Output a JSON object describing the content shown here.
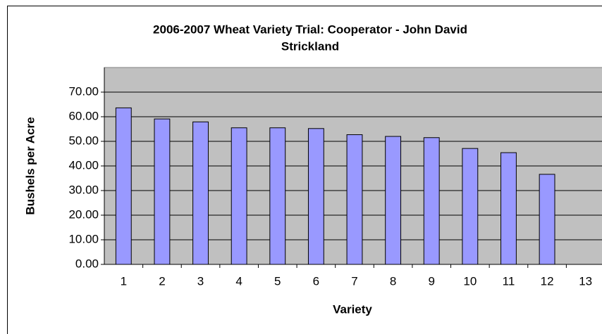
{
  "chart_data": {
    "type": "bar",
    "title": [
      "2006-2007 Wheat Variety Trial: Cooperator - John David",
      "Strickland"
    ],
    "x_label": "Variety",
    "y_label": "Bushels per Acre",
    "categories": [
      "1",
      "2",
      "3",
      "4",
      "5",
      "6",
      "7",
      "8",
      "9",
      "10",
      "11",
      "12",
      "13"
    ],
    "values": [
      63.6,
      59.1,
      57.9,
      55.5,
      55.5,
      55.2,
      52.7,
      52.0,
      51.5,
      47.1,
      45.4,
      36.6,
      null
    ],
    "color": "#9999ff",
    "plot_background": "#c0c0c0",
    "ylim": [
      0,
      80
    ],
    "yticks": [
      {
        "value": 0,
        "label": "0.00"
      },
      {
        "value": 10,
        "label": "10.00"
      },
      {
        "value": 20,
        "label": "20.00"
      },
      {
        "value": 30,
        "label": "30.00"
      },
      {
        "value": 40,
        "label": "40.00"
      },
      {
        "value": 50,
        "label": "50.00"
      },
      {
        "value": 60,
        "label": "60.00"
      },
      {
        "value": 70,
        "label": "70.00"
      }
    ],
    "grid": true
  }
}
